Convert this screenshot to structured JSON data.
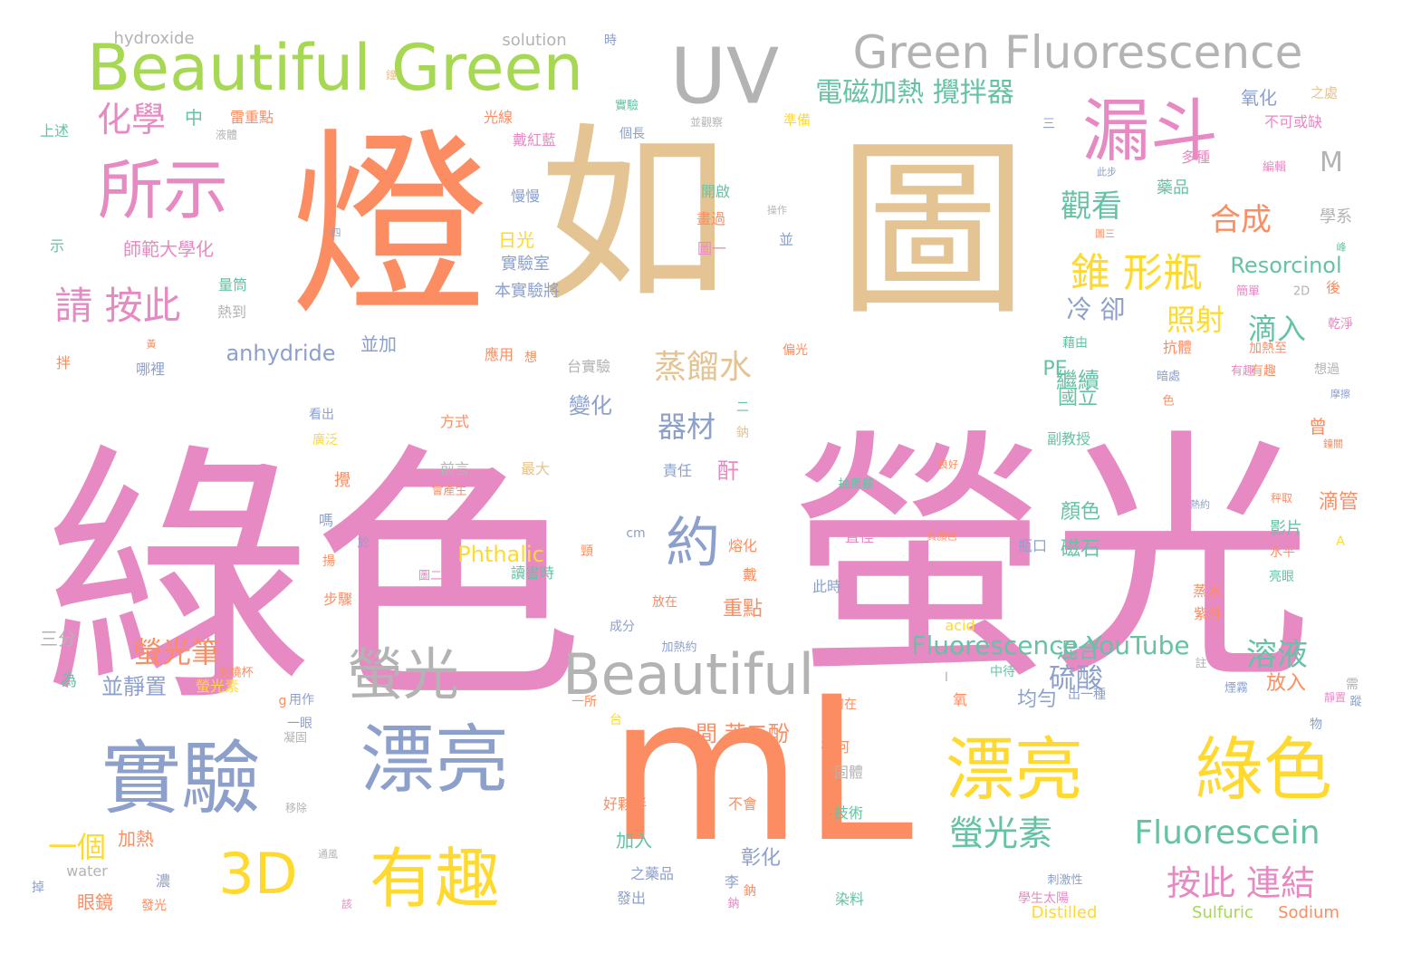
{
  "colors": {
    "orange": "#fc8d62",
    "pink": "#e78ac3",
    "tan": "#e5c494",
    "blue": "#8da0cb",
    "green": "#66c2a5",
    "lime": "#a6d854",
    "yellow": "#ffd92f",
    "gray": "#b3b3b3"
  },
  "words": [
    {
      "t": "綠色",
      "c": "pink"
    },
    {
      "t": "螢光",
      "c": "pink"
    },
    {
      "t": "燈",
      "c": "orange"
    },
    {
      "t": "如",
      "c": "tan"
    },
    {
      "t": "圖",
      "c": "tan"
    },
    {
      "t": "mL",
      "c": "orange"
    },
    {
      "t": "Beautiful Green",
      "c": "lime"
    },
    {
      "t": "UV",
      "c": "gray"
    },
    {
      "t": "Green Fluorescence",
      "c": "gray"
    },
    {
      "t": "漏斗",
      "c": "pink"
    },
    {
      "t": "所示",
      "c": "pink"
    },
    {
      "t": "化學",
      "c": "pink"
    },
    {
      "t": "實驗",
      "c": "blue"
    },
    {
      "t": "漂亮",
      "c": "blue"
    },
    {
      "t": "螢光",
      "c": "gray"
    },
    {
      "t": "Beautiful",
      "c": "gray"
    },
    {
      "t": "漂亮",
      "c": "yellow"
    },
    {
      "t": "綠色",
      "c": "yellow"
    },
    {
      "t": "3D",
      "c": "yellow"
    },
    {
      "t": "有趣",
      "c": "yellow"
    },
    {
      "t": "約",
      "c": "blue"
    },
    {
      "t": "錐 形瓶",
      "c": "yellow"
    },
    {
      "t": "請 按此",
      "c": "pink"
    },
    {
      "t": "電磁加熱 攪拌器",
      "c": "green"
    },
    {
      "t": "觀看",
      "c": "green"
    },
    {
      "t": "合成",
      "c": "orange"
    },
    {
      "t": "照射",
      "c": "yellow"
    },
    {
      "t": "滴入",
      "c": "green"
    },
    {
      "t": "蒸餾水",
      "c": "tan"
    },
    {
      "t": "器材",
      "c": "blue"
    },
    {
      "t": "螢光素",
      "c": "green"
    },
    {
      "t": "Fluorescein",
      "c": "green"
    },
    {
      "t": "按此 連結",
      "c": "pink"
    },
    {
      "t": "Fluorescence YouTube",
      "c": "green"
    },
    {
      "t": "溶液",
      "c": "green"
    },
    {
      "t": "硫酸",
      "c": "blue"
    },
    {
      "t": "螢光筆",
      "c": "orange"
    },
    {
      "t": "一個",
      "c": "yellow"
    },
    {
      "t": "hydroxide",
      "c": "gray"
    },
    {
      "t": "solution",
      "c": "gray"
    },
    {
      "t": "M",
      "c": "gray"
    },
    {
      "t": "Resorcinol",
      "c": "green"
    },
    {
      "t": "anhydride",
      "c": "blue"
    },
    {
      "t": "Phthalic",
      "c": "yellow"
    },
    {
      "t": "冷 卻",
      "c": "blue"
    },
    {
      "t": "變化",
      "c": "blue"
    },
    {
      "t": "繼續",
      "c": "green"
    },
    {
      "t": "間 苯二酚",
      "c": "orange"
    },
    {
      "t": "均勻",
      "c": "blue"
    },
    {
      "t": "混合",
      "c": "green"
    },
    {
      "t": "並靜置",
      "c": "blue"
    },
    {
      "t": "師範大學化",
      "c": "pink"
    },
    {
      "t": "中",
      "c": "green"
    },
    {
      "t": "重點",
      "c": "orange"
    },
    {
      "t": "日光",
      "c": "yellow"
    },
    {
      "t": "實驗室",
      "c": "blue"
    },
    {
      "t": "本實驗將",
      "c": "blue"
    },
    {
      "t": "顏色",
      "c": "green"
    },
    {
      "t": "磁石",
      "c": "green"
    },
    {
      "t": "國立",
      "c": "green"
    },
    {
      "t": "PE",
      "c": "green"
    },
    {
      "t": "滴管",
      "c": "orange"
    },
    {
      "t": "影片",
      "c": "green"
    },
    {
      "t": "放入",
      "c": "orange"
    },
    {
      "t": "彰化",
      "c": "blue"
    },
    {
      "t": "加入",
      "c": "green"
    },
    {
      "t": "眼鏡",
      "c": "orange"
    },
    {
      "t": "加熱",
      "c": "orange"
    },
    {
      "t": "Distilled",
      "c": "yellow"
    },
    {
      "t": "Sulfuric",
      "c": "lime"
    },
    {
      "t": "Sodium",
      "c": "orange"
    },
    {
      "t": "water",
      "c": "gray"
    },
    {
      "t": "acid",
      "c": "yellow"
    },
    {
      "t": "三分",
      "c": "gray"
    },
    {
      "t": "為",
      "c": "green"
    },
    {
      "t": "螢光素",
      "c": "yellow"
    },
    {
      "t": "氧化",
      "c": "blue"
    },
    {
      "t": "不可或缺",
      "c": "pink"
    },
    {
      "t": "藥品",
      "c": "green"
    },
    {
      "t": "多種",
      "c": "pink"
    },
    {
      "t": "學系",
      "c": "gray"
    },
    {
      "t": "量筒",
      "c": "green"
    },
    {
      "t": "熱到",
      "c": "gray"
    },
    {
      "t": "上述",
      "c": "green"
    },
    {
      "t": "雷重點",
      "c": "orange"
    },
    {
      "t": "光線",
      "c": "orange"
    },
    {
      "t": "戴紅藍",
      "c": "pink"
    },
    {
      "t": "慢慢",
      "c": "blue"
    },
    {
      "t": "開啟",
      "c": "green"
    },
    {
      "t": "圖一",
      "c": "pink"
    },
    {
      "t": "並",
      "c": "blue"
    },
    {
      "t": "並加",
      "c": "blue"
    },
    {
      "t": "應用",
      "c": "orange"
    },
    {
      "t": "台實驗",
      "c": "gray"
    },
    {
      "t": "方式",
      "c": "orange"
    },
    {
      "t": "前言",
      "c": "gray"
    },
    {
      "t": "最大",
      "c": "tan"
    },
    {
      "t": "讀書時",
      "c": "green"
    },
    {
      "t": "責任",
      "c": "blue"
    },
    {
      "t": "酐",
      "c": "pink"
    },
    {
      "t": "直徑",
      "c": "pink"
    },
    {
      "t": "抽風櫃",
      "c": "green"
    },
    {
      "t": "瓶口",
      "c": "blue"
    },
    {
      "t": "放在",
      "c": "orange"
    },
    {
      "t": "此時",
      "c": "blue"
    },
    {
      "t": "加熱約",
      "c": "blue"
    },
    {
      "t": "成分",
      "c": "blue"
    },
    {
      "t": "副教授",
      "c": "green"
    },
    {
      "t": "抗體",
      "c": "orange"
    },
    {
      "t": "加熱至",
      "c": "orange"
    },
    {
      "t": "藉由",
      "c": "green"
    },
    {
      "t": "蒸水",
      "c": "orange"
    },
    {
      "t": "紫外",
      "c": "orange"
    },
    {
      "t": "亮眼",
      "c": "green"
    },
    {
      "t": "水平",
      "c": "orange"
    },
    {
      "t": "秤取",
      "c": "orange"
    },
    {
      "t": "固體",
      "c": "gray"
    },
    {
      "t": "技術",
      "c": "green"
    },
    {
      "t": "有何",
      "c": "orange"
    },
    {
      "t": "何在",
      "c": "orange"
    },
    {
      "t": "好夥伴",
      "c": "orange"
    },
    {
      "t": "不會",
      "c": "orange"
    },
    {
      "t": "之藥品",
      "c": "blue"
    },
    {
      "t": "發出",
      "c": "blue"
    },
    {
      "t": "染料",
      "c": "green"
    },
    {
      "t": "學生太陽",
      "c": "pink"
    },
    {
      "t": "用作",
      "c": "blue"
    },
    {
      "t": "一眼",
      "c": "blue"
    },
    {
      "t": "支燒杯",
      "c": "orange"
    },
    {
      "t": "中待",
      "c": "green"
    },
    {
      "t": "出一種",
      "c": "blue"
    },
    {
      "t": "乾淨",
      "c": "pink"
    },
    {
      "t": "編輯",
      "c": "pink"
    },
    {
      "t": "簡單",
      "c": "pink"
    },
    {
      "t": "後",
      "c": "orange"
    },
    {
      "t": "2D",
      "c": "gray"
    },
    {
      "t": "準備",
      "c": "yellow"
    },
    {
      "t": "之處",
      "c": "tan"
    },
    {
      "t": "個長",
      "c": "blue"
    },
    {
      "t": "實驗",
      "c": "green"
    },
    {
      "t": "並觀察",
      "c": "gray"
    },
    {
      "t": "液體",
      "c": "gray"
    },
    {
      "t": "時",
      "c": "blue"
    },
    {
      "t": "鐘",
      "c": "tan"
    },
    {
      "t": "步驟",
      "c": "orange"
    },
    {
      "t": "嗎",
      "c": "blue"
    },
    {
      "t": "攪",
      "c": "orange"
    },
    {
      "t": "拌",
      "c": "orange"
    },
    {
      "t": "示",
      "c": "green"
    },
    {
      "t": "哪裡",
      "c": "blue"
    },
    {
      "t": "看出",
      "c": "blue"
    },
    {
      "t": "廣泛",
      "c": "yellow"
    },
    {
      "t": "鈉",
      "c": "tan"
    },
    {
      "t": "濃",
      "c": "blue"
    },
    {
      "t": "發光",
      "c": "orange"
    },
    {
      "t": "cm",
      "c": "blue"
    },
    {
      "t": "熔化",
      "c": "orange"
    },
    {
      "t": "戴",
      "c": "orange"
    },
    {
      "t": "氧",
      "c": "orange"
    },
    {
      "t": "台",
      "c": "yellow"
    },
    {
      "t": "一所",
      "c": "orange"
    },
    {
      "t": "物",
      "c": "blue"
    },
    {
      "t": "有趣",
      "c": "orange"
    },
    {
      "t": "想過",
      "c": "gray"
    },
    {
      "t": "曾",
      "c": "orange"
    },
    {
      "t": "A",
      "c": "yellow"
    },
    {
      "t": "凝固",
      "c": "gray"
    },
    {
      "t": "移除",
      "c": "gray"
    },
    {
      "t": "g",
      "c": "orange"
    },
    {
      "t": "揚",
      "c": "orange"
    },
    {
      "t": "於",
      "c": "blue"
    },
    {
      "t": "頸",
      "c": "orange"
    },
    {
      "t": "圖二",
      "c": "pink"
    },
    {
      "t": "會產生",
      "c": "orange"
    },
    {
      "t": "良好",
      "c": "orange"
    },
    {
      "t": "其顏色",
      "c": "orange"
    },
    {
      "t": "李",
      "c": "blue"
    },
    {
      "t": "鈉",
      "c": "orange"
    },
    {
      "t": "掉",
      "c": "blue"
    },
    {
      "t": "該",
      "c": "pink"
    },
    {
      "t": "圖三",
      "c": "orange"
    },
    {
      "t": "此步",
      "c": "blue"
    },
    {
      "t": "操作",
      "c": "gray"
    },
    {
      "t": "畫過",
      "c": "orange"
    },
    {
      "t": "四",
      "c": "blue"
    },
    {
      "t": "黃",
      "c": "orange"
    },
    {
      "t": "想",
      "c": "orange"
    },
    {
      "t": "偏光",
      "c": "orange"
    },
    {
      "t": "二",
      "c": "green"
    },
    {
      "t": "三",
      "c": "blue"
    },
    {
      "t": "峰",
      "c": "green"
    },
    {
      "t": "色",
      "c": "orange"
    },
    {
      "t": "靜置",
      "c": "pink"
    },
    {
      "t": "需",
      "c": "gray"
    },
    {
      "t": "蹤",
      "c": "blue"
    },
    {
      "t": "註",
      "c": "gray"
    },
    {
      "t": "煙霧",
      "c": "blue"
    },
    {
      "t": "刺激性",
      "c": "blue"
    },
    {
      "t": "暗處",
      "c": "blue"
    },
    {
      "t": "熱約",
      "c": "blue"
    },
    {
      "t": "有趣",
      "c": "pink"
    },
    {
      "t": "通風",
      "c": "gray"
    },
    {
      "t": "摩擦",
      "c": "blue"
    },
    {
      "t": "鐘關",
      "c": "orange"
    },
    {
      "t": "I",
      "c": "gray"
    },
    {
      "t": "鈉",
      "c": "pink"
    }
  ]
}
